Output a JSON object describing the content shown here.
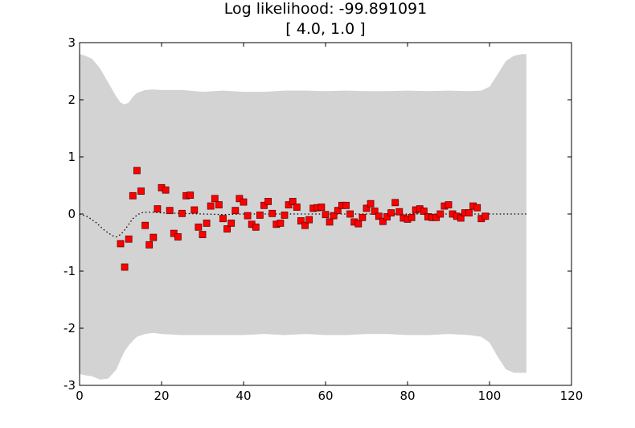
{
  "chart_data": {
    "type": "scatter",
    "title": "Log likelihood: -99.891091",
    "subtitle": "[ 4.0, 1.0 ]",
    "xlim": [
      0,
      120
    ],
    "ylim": [
      -3,
      3
    ],
    "xticks": [
      0,
      20,
      40,
      60,
      80,
      100,
      120
    ],
    "yticks": [
      -3,
      -2,
      -1,
      0,
      1,
      2,
      3
    ],
    "grid": false,
    "colors": {
      "band": "#d3d3d3",
      "marker_fill": "#ff0000",
      "marker_edge": "#6e0000",
      "mean_line": "#000000"
    },
    "band": {
      "x": [
        0,
        1,
        3,
        5,
        7,
        9,
        10,
        11,
        12,
        13,
        14,
        16,
        18,
        20,
        25,
        30,
        35,
        40,
        45,
        50,
        55,
        60,
        65,
        70,
        75,
        80,
        85,
        90,
        95,
        98,
        100,
        102,
        104,
        106,
        108,
        109
      ],
      "upper": [
        2.8,
        2.78,
        2.72,
        2.55,
        2.3,
        2.05,
        1.95,
        1.92,
        1.95,
        2.05,
        2.12,
        2.17,
        2.18,
        2.17,
        2.17,
        2.14,
        2.16,
        2.14,
        2.14,
        2.16,
        2.16,
        2.15,
        2.16,
        2.15,
        2.15,
        2.16,
        2.15,
        2.16,
        2.15,
        2.16,
        2.23,
        2.45,
        2.68,
        2.77,
        2.8,
        2.8
      ],
      "lower": [
        -2.8,
        -2.82,
        -2.84,
        -2.9,
        -2.88,
        -2.72,
        -2.55,
        -2.4,
        -2.3,
        -2.22,
        -2.15,
        -2.1,
        -2.08,
        -2.1,
        -2.12,
        -2.12,
        -2.12,
        -2.12,
        -2.1,
        -2.12,
        -2.1,
        -2.12,
        -2.12,
        -2.1,
        -2.1,
        -2.12,
        -2.12,
        -2.1,
        -2.12,
        -2.15,
        -2.25,
        -2.5,
        -2.72,
        -2.78,
        -2.78,
        -2.78
      ]
    },
    "mean": {
      "x": [
        0,
        2,
        4,
        6,
        8,
        9,
        10,
        11,
        12,
        13,
        14,
        15,
        16,
        18,
        20,
        25,
        30,
        35,
        40,
        50,
        60,
        70,
        80,
        90,
        100,
        105,
        109
      ],
      "y": [
        0.0,
        -0.05,
        -0.15,
        -0.28,
        -0.38,
        -0.4,
        -0.36,
        -0.28,
        -0.18,
        -0.08,
        -0.02,
        0.02,
        0.03,
        0.03,
        0.02,
        0.01,
        0.0,
        -0.01,
        0.0,
        0.0,
        0.0,
        0.0,
        0.0,
        0.0,
        0.0,
        0.0,
        0.0
      ]
    },
    "series": [
      {
        "x": [
          10,
          11,
          12,
          13,
          14,
          15,
          16,
          17,
          18,
          19,
          20,
          21,
          22,
          23,
          24,
          25,
          26,
          27,
          28,
          29,
          30,
          31,
          32,
          33,
          34,
          35,
          36,
          37,
          38,
          39,
          40,
          41,
          42,
          43,
          44,
          45,
          46,
          47,
          48,
          49,
          50,
          51,
          52,
          53,
          54,
          55,
          56,
          57,
          58,
          59,
          60,
          61,
          62,
          63,
          64,
          65,
          66,
          67,
          68,
          69,
          70,
          71,
          72,
          73,
          74,
          75,
          76,
          77,
          78,
          79,
          80,
          81,
          82,
          83,
          84,
          85,
          86,
          87,
          88,
          89,
          90,
          91,
          92,
          93,
          94,
          95,
          96,
          97,
          98,
          99
        ],
        "y": [
          -0.52,
          -0.93,
          -0.44,
          0.32,
          0.76,
          0.4,
          -0.2,
          -0.54,
          -0.41,
          0.09,
          0.46,
          0.42,
          0.06,
          -0.34,
          -0.4,
          0.01,
          0.32,
          0.33,
          0.07,
          -0.23,
          -0.36,
          -0.16,
          0.14,
          0.27,
          0.16,
          -0.08,
          -0.26,
          -0.16,
          0.06,
          0.27,
          0.21,
          -0.03,
          -0.18,
          -0.23,
          -0.02,
          0.15,
          0.22,
          0.01,
          -0.18,
          -0.16,
          -0.02,
          0.16,
          0.22,
          0.12,
          -0.12,
          -0.2,
          -0.1,
          0.1,
          0.11,
          0.12,
          -0.01,
          -0.14,
          -0.03,
          0.06,
          0.15,
          0.15,
          0.0,
          -0.14,
          -0.17,
          -0.06,
          0.1,
          0.18,
          0.05,
          -0.04,
          -0.13,
          -0.05,
          0.02,
          0.2,
          0.04,
          -0.07,
          -0.09,
          -0.06,
          0.07,
          0.09,
          0.05,
          -0.05,
          -0.06,
          -0.06,
          0.0,
          0.14,
          0.16,
          0.0,
          -0.04,
          -0.07,
          0.02,
          0.02,
          0.14,
          0.11,
          -0.08,
          -0.04
        ]
      }
    ]
  }
}
